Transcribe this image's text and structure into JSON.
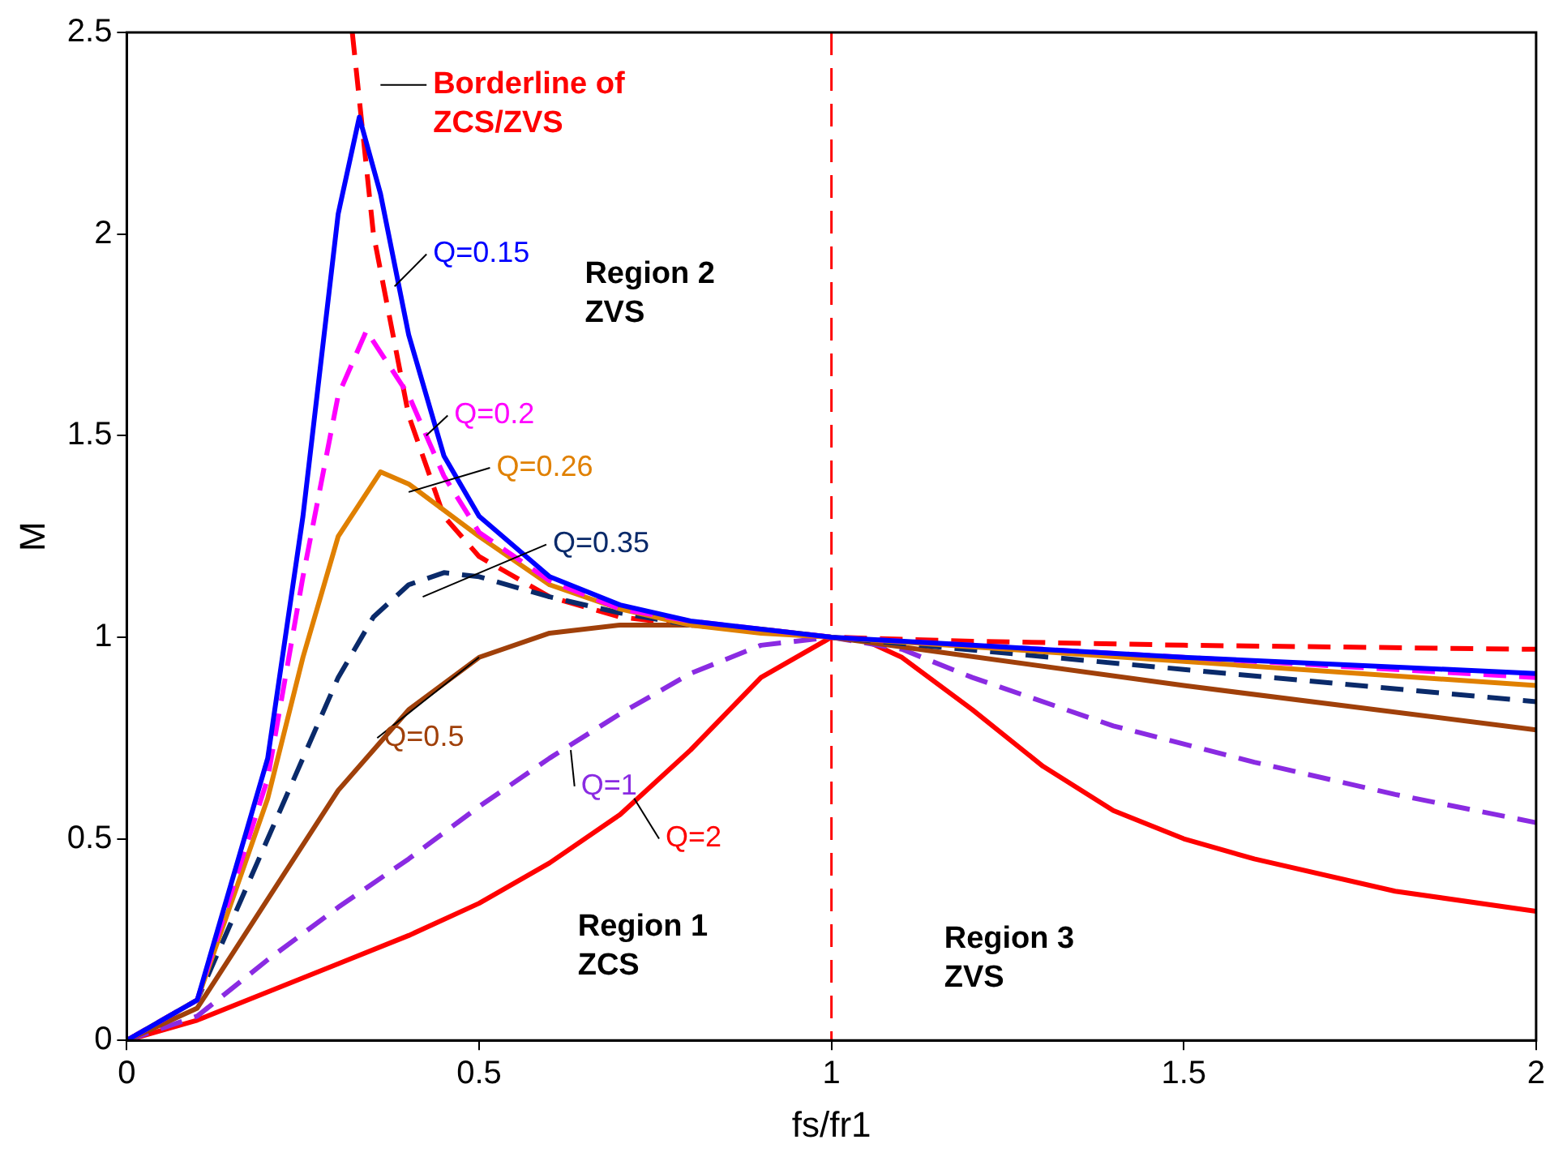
{
  "chart_data": {
    "type": "line",
    "xlabel": "fs/fr1",
    "ylabel": "M",
    "xlim": [
      0,
      2
    ],
    "ylim": [
      0,
      2.5
    ],
    "xticks": [
      0,
      0.5,
      1,
      1.5,
      2
    ],
    "yticks": [
      0,
      0.5,
      1,
      1.5,
      2,
      2.5
    ],
    "grid": false,
    "legend": false,
    "marker": "none",
    "series": [
      {
        "name": "Q=0.15",
        "color": "#0000ff",
        "line_style": "solid",
        "x": [
          0,
          0.1,
          0.2,
          0.25,
          0.3,
          0.33,
          0.36,
          0.4,
          0.45,
          0.5,
          0.6,
          0.7,
          0.8,
          0.9,
          1,
          1.2,
          1.5,
          2
        ],
        "values": [
          0,
          0.1,
          0.7,
          1.3,
          2.05,
          2.29,
          2.1,
          1.75,
          1.45,
          1.3,
          1.15,
          1.08,
          1.04,
          1.02,
          1,
          0.98,
          0.95,
          0.91
        ]
      },
      {
        "name": "Q=0.2",
        "color": "#ff00ff",
        "line_style": "dashed",
        "x": [
          0,
          0.1,
          0.2,
          0.25,
          0.3,
          0.34,
          0.4,
          0.45,
          0.5,
          0.6,
          0.7,
          0.8,
          0.9,
          1,
          1.5,
          2
        ],
        "values": [
          0,
          0.1,
          0.65,
          1.15,
          1.6,
          1.76,
          1.6,
          1.4,
          1.26,
          1.14,
          1.07,
          1.04,
          1.02,
          1,
          0.95,
          0.9
        ]
      },
      {
        "name": "Q=0.26",
        "color": "#e08000",
        "line_style": "solid",
        "x": [
          0,
          0.1,
          0.2,
          0.25,
          0.3,
          0.36,
          0.4,
          0.5,
          0.6,
          0.7,
          0.8,
          0.9,
          1,
          1.5,
          2
        ],
        "values": [
          0,
          0.1,
          0.6,
          0.95,
          1.25,
          1.41,
          1.38,
          1.25,
          1.13,
          1.07,
          1.03,
          1.01,
          1,
          0.94,
          0.88
        ]
      },
      {
        "name": "Q=0.35",
        "color": "#0a2a6a",
        "line_style": "dashed",
        "x": [
          0,
          0.1,
          0.2,
          0.25,
          0.3,
          0.35,
          0.4,
          0.45,
          0.5,
          0.6,
          0.7,
          0.8,
          1,
          1.5,
          2
        ],
        "values": [
          0,
          0.1,
          0.5,
          0.7,
          0.9,
          1.05,
          1.13,
          1.16,
          1.15,
          1.1,
          1.06,
          1.03,
          1,
          0.92,
          0.84
        ]
      },
      {
        "name": "Q=0.5",
        "color": "#a0400a",
        "line_style": "solid",
        "x": [
          0,
          0.1,
          0.2,
          0.3,
          0.4,
          0.5,
          0.6,
          0.7,
          0.8,
          0.9,
          1,
          1.5,
          2
        ],
        "values": [
          0,
          0.08,
          0.35,
          0.62,
          0.82,
          0.95,
          1.01,
          1.03,
          1.03,
          1.02,
          1,
          0.88,
          0.77
        ]
      },
      {
        "name": "Q=1",
        "color": "#8a2be2",
        "line_style": "dashed",
        "x": [
          0,
          0.1,
          0.2,
          0.3,
          0.4,
          0.5,
          0.6,
          0.7,
          0.8,
          0.9,
          1,
          1.1,
          1.2,
          1.4,
          1.6,
          1.8,
          2
        ],
        "values": [
          0,
          0.06,
          0.2,
          0.33,
          0.45,
          0.58,
          0.7,
          0.81,
          0.91,
          0.98,
          1,
          0.97,
          0.9,
          0.78,
          0.69,
          0.61,
          0.54
        ]
      },
      {
        "name": "Q=2",
        "color": "#ff0000",
        "line_style": "solid",
        "x": [
          0,
          0.1,
          0.2,
          0.3,
          0.4,
          0.5,
          0.6,
          0.7,
          0.8,
          0.9,
          1,
          1.05,
          1.1,
          1.2,
          1.3,
          1.4,
          1.5,
          1.6,
          1.8,
          2
        ],
        "values": [
          0,
          0.05,
          0.12,
          0.19,
          0.26,
          0.34,
          0.44,
          0.56,
          0.72,
          0.9,
          1,
          0.99,
          0.95,
          0.82,
          0.68,
          0.57,
          0.5,
          0.45,
          0.37,
          0.32
        ]
      },
      {
        "name": "Borderline of ZCS/ZVS",
        "color": "#ff0000",
        "line_style": "dashed",
        "x": [
          0.32,
          0.35,
          0.4,
          0.45,
          0.5,
          0.6,
          0.7,
          0.8,
          1,
          1.2,
          1.5,
          2
        ],
        "values": [
          2.5,
          2,
          1.55,
          1.3,
          1.2,
          1.1,
          1.05,
          1.03,
          1,
          0.99,
          0.98,
          0.97
        ]
      }
    ],
    "ref_lines": [
      {
        "axis": "x",
        "value": 1,
        "color": "#ff0000",
        "line_style": "dashed"
      }
    ],
    "annotations": [
      "Region 2\nZVS",
      "Region 1\nZCS",
      "Region 3\nZVS"
    ]
  }
}
